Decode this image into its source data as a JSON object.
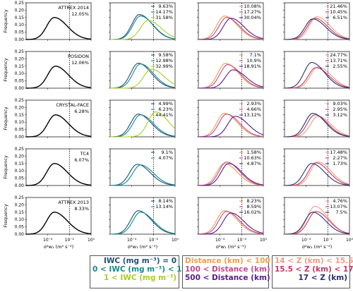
{
  "colors": {
    "iwc": [
      "#1f4e79",
      "#138a8a",
      "#a6cf1e"
    ],
    "dist": [
      "#f29c4c",
      "#c44a8e",
      "#5b1a8a"
    ],
    "z": [
      "#f79a82",
      "#c23a64",
      "#2c2f6e"
    ],
    "all": "#000000"
  },
  "axes": {
    "ylabel": "Frequency",
    "xlabel": "σ²w₁ (m² s⁻²)",
    "xticks": [
      "10⁻⁴",
      "10⁻²",
      "10⁰"
    ],
    "yticks": [
      "0.00",
      "0.05",
      "0.10",
      "0.15",
      "0.20",
      "0.25"
    ]
  },
  "chart_data": {
    "type": "line",
    "xscale": "log",
    "xlim": [
      1e-06,
      1
    ],
    "ylim": [
      0,
      0.25
    ],
    "threshold_line_x": 0.01,
    "rows": [
      {
        "campaign": "ATTREX 2014",
        "pct": "12.05%",
        "col1": {
          "peak": 0.15,
          "mode_exp": -3.4
        },
        "col2": {
          "labels": [
            "9.63%",
            "14.17%",
            "31.58%"
          ],
          "peaks": [
            0.17,
            0.16,
            0.13
          ],
          "modes": [
            -3.3,
            -3.2,
            -2.5
          ]
        },
        "col3": {
          "labels": [
            "10.08%",
            "17.27%",
            "30.04%"
          ],
          "peaks": [
            0.16,
            0.15,
            0.145
          ],
          "modes": [
            -3.6,
            -3.4,
            -3.0
          ]
        },
        "col4": {
          "labels": [
            "21.46%",
            "10.45%",
            "6.51%"
          ],
          "peaks": [
            0.155,
            0.145,
            0.14
          ],
          "modes": [
            -3.0,
            -3.2,
            -3.4
          ]
        }
      },
      {
        "campaign": "POSIDON",
        "pct": "12.06%",
        "col1": {
          "peak": 0.15,
          "mode_exp": -3.3
        },
        "col2": {
          "labels": [
            "9.58%",
            "12.98%",
            "32.99%"
          ],
          "peaks": [
            0.17,
            0.165,
            0.13
          ],
          "modes": [
            -3.4,
            -3.2,
            -2.2
          ]
        },
        "col3": {
          "labels": [
            "7.1%",
            "10.9%",
            "18.91%"
          ],
          "peaks": [
            0.17,
            0.16,
            0.125
          ],
          "modes": [
            -3.5,
            -3.3,
            -2.8
          ]
        },
        "col4": {
          "labels": [
            "24.77%",
            "13.71%",
            "2.55%"
          ],
          "peaks": [
            0.145,
            0.14,
            0.175
          ],
          "modes": [
            -2.9,
            -3.1,
            -3.5
          ]
        }
      },
      {
        "campaign": "CRYSTAL-FACE",
        "pct": "6.28%",
        "col1": {
          "peak": 0.15,
          "mode_exp": -3.3
        },
        "col2": {
          "labels": [
            "4.99%",
            "6.23%",
            "44.41%"
          ],
          "peaks": [
            0.155,
            0.15,
            0.17
          ],
          "modes": [
            -3.4,
            -3.2,
            -1.8
          ]
        },
        "col3": {
          "labels": [
            "2.93%",
            "4.66%",
            "13.12%"
          ],
          "peaks": [
            0.16,
            0.155,
            0.14
          ],
          "modes": [
            -3.6,
            -3.4,
            -2.6
          ]
        },
        "col4": {
          "labels": [
            "9.03%",
            "2.95%",
            "3.12%"
          ],
          "peaks": [
            0.14,
            0.15,
            0.16
          ],
          "modes": [
            -2.9,
            -3.2,
            -3.4
          ]
        }
      },
      {
        "campaign": "TC4",
        "pct": "6.07%",
        "col1": {
          "peak": 0.15,
          "mode_exp": -3.4
        },
        "col2": {
          "labels": [
            "9.1%",
            "4.07%"
          ],
          "peaks": [
            0.145,
            0.14
          ],
          "modes": [
            -3.5,
            -3.2
          ]
        },
        "col3": {
          "labels": [
            "1.58%",
            "10.63%",
            "4.87%"
          ],
          "peaks": [
            0.15,
            0.16,
            0.15
          ],
          "modes": [
            -3.6,
            -3.4,
            -3.2
          ]
        },
        "col4": {
          "labels": [
            "17.48%",
            "2.27%",
            "1.73%"
          ],
          "peaks": [
            0.16,
            0.155,
            0.15
          ],
          "modes": [
            -2.9,
            -3.1,
            -3.5
          ]
        }
      },
      {
        "campaign": "ATTREX 2013",
        "pct": "8.33%",
        "col1": {
          "peak": 0.15,
          "mode_exp": -3.4
        },
        "col2": {
          "labels": [
            "8.14%",
            "13.14%"
          ],
          "peaks": [
            0.16,
            0.15
          ],
          "modes": [
            -3.4,
            -3.2
          ]
        },
        "col3": {
          "labels": [
            "8.23%",
            "8.59%",
            "16.02%"
          ],
          "peaks": [
            0.16,
            0.155,
            0.145
          ],
          "modes": [
            -3.6,
            -3.4,
            -3.0
          ]
        },
        "col4": {
          "labels": [
            "4.76%",
            "13.07%",
            "7.5%"
          ],
          "peaks": [
            0.19,
            0.155,
            0.15
          ],
          "modes": [
            -3.2,
            -3.1,
            -3.4
          ]
        }
      }
    ]
  },
  "legends": {
    "iwc": [
      "IWC (mg m⁻³) = 0",
      "0 < IWC (mg m⁻³) < 1",
      "1 < IWC (mg m⁻³)"
    ],
    "dist": [
      "Distance (km) < 100",
      "100 < Distance (km) < 500",
      "500 < Distance (km)"
    ],
    "z": [
      "14 < Z (km) < 15.5",
      "15.5 < Z (km) < 17",
      "17 < Z (km)"
    ]
  }
}
